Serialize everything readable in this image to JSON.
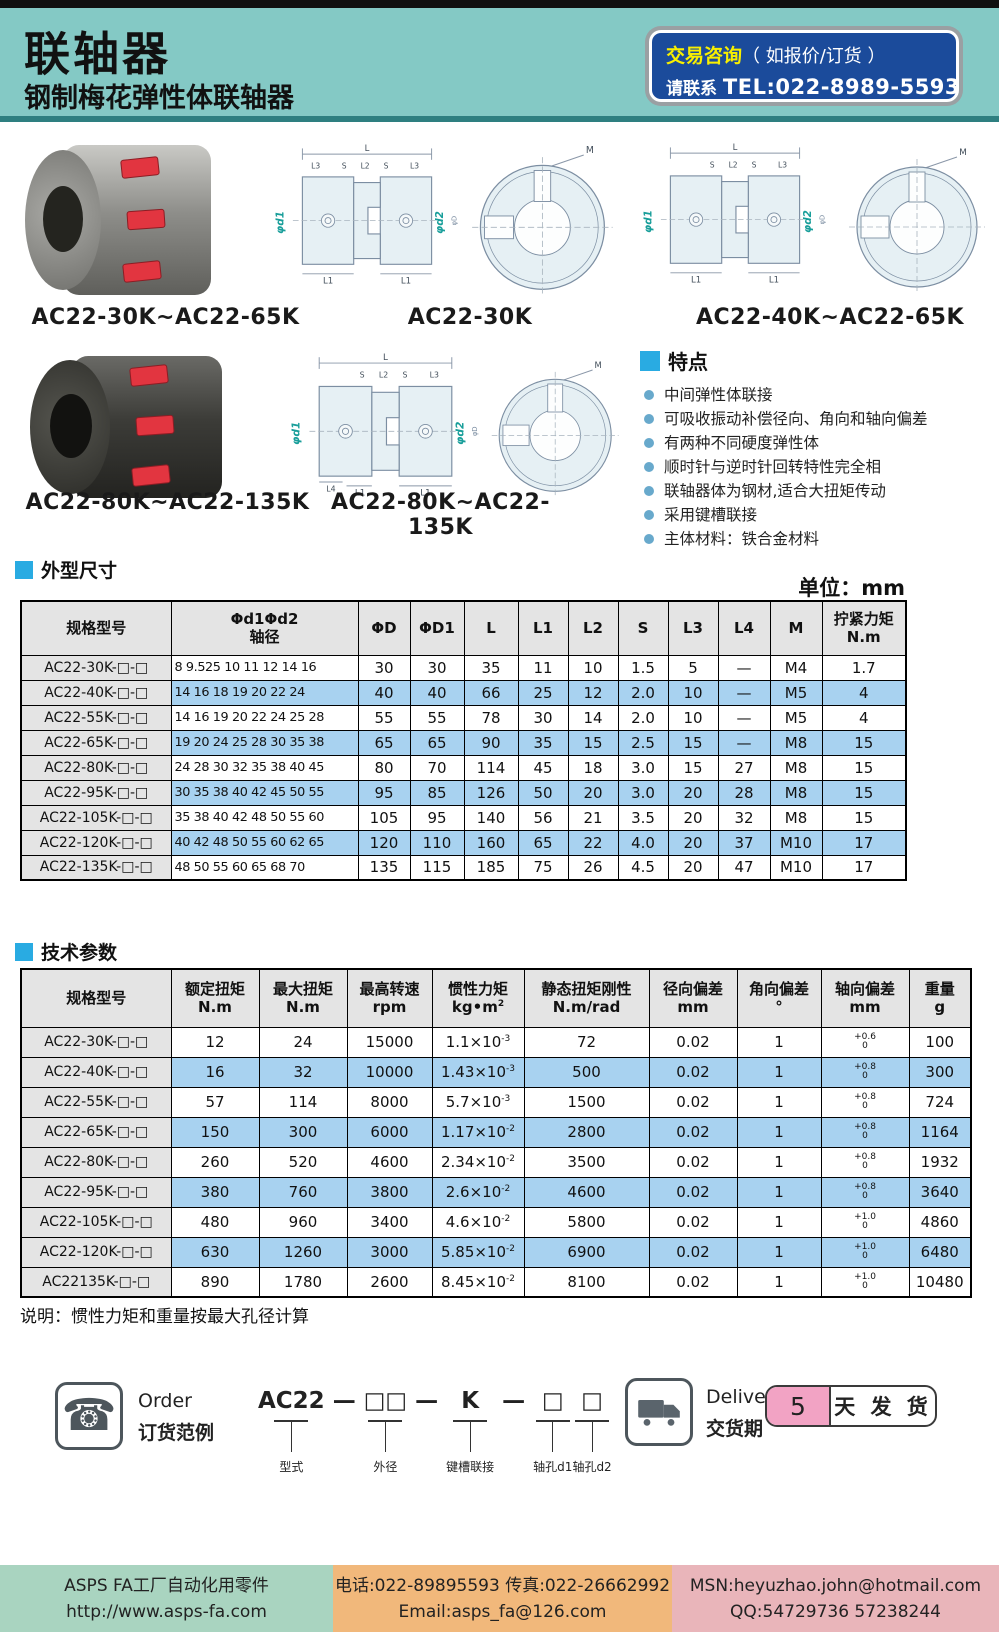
{
  "header": {
    "title": "联轴器",
    "subtitle": "钢制梅花弹性体联轴器",
    "contact_highlight": "交易咨询",
    "contact_rest": "（ 如报价/订货 ）",
    "contact_prefix": "请联系",
    "contact_tel": "TEL:022-8989-5593"
  },
  "products": {
    "row1_photo_label": "AC22-30K~AC22-65K",
    "row1_drawing1_label": "AC22-30K",
    "row1_drawing2_label": "AC22-40K~AC22-65K",
    "row2_photo_label": "AC22-80K~AC22-135K",
    "row2_drawing_label": "AC22-80K~AC22-135K"
  },
  "dim_labels": {
    "L": "L",
    "L1": "L1",
    "L2": "L2",
    "L3": "L3",
    "L4": "L4",
    "S": "S",
    "M": "M",
    "d1": "φd1",
    "d2": "φd2",
    "D": "φD"
  },
  "features": {
    "title": "特点",
    "items": [
      "中间弹性体联接",
      "可吸收振动补偿径向、角向和轴向偏差",
      "有两种不同硬度弹性体",
      "顺时针与逆时针回转特性完全相",
      "联轴器体为钢材,适合大扭矩传动",
      "采用键槽联接",
      "主体材料：铁合金材料"
    ]
  },
  "dim_section": {
    "title": "外型尺寸",
    "unit": "单位：mm",
    "headers": {
      "model": "规格型号",
      "bore_l1": "Φd1Φd2",
      "bore_l2": "轴径",
      "cols": [
        "ΦD",
        "ΦD1",
        "L",
        "L1",
        "L2",
        "S",
        "L3",
        "L4",
        "M"
      ],
      "torque_l1": "拧紧力矩",
      "torque_l2": "N.m"
    },
    "rows": [
      {
        "model": "AC22-30K-□-□",
        "bores": "8 9.525 10 11 12 14 16",
        "vals": [
          "30",
          "30",
          "35",
          "11",
          "10",
          "1.5",
          "5",
          "—",
          "M4",
          "1.7"
        ]
      },
      {
        "model": "AC22-40K-□-□",
        "bores": "14 16 18 19 20 22 24",
        "vals": [
          "40",
          "40",
          "66",
          "25",
          "12",
          "2.0",
          "10",
          "—",
          "M5",
          "4"
        ]
      },
      {
        "model": "AC22-55K-□-□",
        "bores": "14 16 19 20 22 24 25 28",
        "vals": [
          "55",
          "55",
          "78",
          "30",
          "14",
          "2.0",
          "10",
          "—",
          "M5",
          "4"
        ]
      },
      {
        "model": "AC22-65K-□-□",
        "bores": "19 20 24 25 28 30 35 38",
        "vals": [
          "65",
          "65",
          "90",
          "35",
          "15",
          "2.5",
          "15",
          "—",
          "M8",
          "15"
        ]
      },
      {
        "model": "AC22-80K-□-□",
        "bores": "24 28 30 32 35 38 40 45",
        "vals": [
          "80",
          "70",
          "114",
          "45",
          "18",
          "3.0",
          "15",
          "27",
          "M8",
          "15"
        ]
      },
      {
        "model": "AC22-95K-□-□",
        "bores": "30 35 38 40 42 45 50 55",
        "vals": [
          "95",
          "85",
          "126",
          "50",
          "20",
          "3.0",
          "20",
          "28",
          "M8",
          "15"
        ]
      },
      {
        "model": "AC22-105K-□-□",
        "bores": "35 38 40 42 48 50 55 60",
        "vals": [
          "105",
          "95",
          "140",
          "56",
          "21",
          "3.5",
          "20",
          "32",
          "M8",
          "15"
        ]
      },
      {
        "model": "AC22-120K-□-□",
        "bores": "40 42 48 50 55 60 62 65",
        "vals": [
          "120",
          "110",
          "160",
          "65",
          "22",
          "4.0",
          "20",
          "37",
          "M10",
          "17"
        ]
      },
      {
        "model": "AC22-135K-□-□",
        "bores": "48 50 55 60 65 68 70",
        "vals": [
          "135",
          "115",
          "185",
          "75",
          "26",
          "4.5",
          "20",
          "47",
          "M10",
          "17"
        ]
      }
    ]
  },
  "tech_section": {
    "title": "技术参数",
    "headers": {
      "model": "规格型号",
      "cols": [
        {
          "l1": "额定扭矩",
          "l2": "N.m"
        },
        {
          "l1": "最大扭矩",
          "l2": "N.m"
        },
        {
          "l1": "最高转速",
          "l2": "rpm"
        },
        {
          "l1": "惯性力矩",
          "l2": "kg•m",
          "sup": "2"
        },
        {
          "l1": "静态扭矩刚性",
          "l2": "N.m/rad"
        },
        {
          "l1": "径向偏差",
          "l2": "mm"
        },
        {
          "l1": "角向偏差",
          "l2": "°"
        },
        {
          "l1": "轴向偏差",
          "l2": "mm"
        },
        {
          "l1": "重量",
          "l2": "g"
        }
      ]
    },
    "rows": [
      {
        "model": "AC22-30K-□-□",
        "rated": "12",
        "max": "24",
        "speed": "15000",
        "inertia_base": "1.1×10",
        "inertia_exp": "-3",
        "stiff": "72",
        "radial": "0.02",
        "angular": "1",
        "axial_top": "+0.6",
        "axial_bot": "0",
        "weight": "100"
      },
      {
        "model": "AC22-40K-□-□",
        "rated": "16",
        "max": "32",
        "speed": "10000",
        "inertia_base": "1.43×10",
        "inertia_exp": "-3",
        "stiff": "500",
        "radial": "0.02",
        "angular": "1",
        "axial_top": "+0.8",
        "axial_bot": "0",
        "weight": "300"
      },
      {
        "model": "AC22-55K-□-□",
        "rated": "57",
        "max": "114",
        "speed": "8000",
        "inertia_base": "5.7×10",
        "inertia_exp": "-3",
        "stiff": "1500",
        "radial": "0.02",
        "angular": "1",
        "axial_top": "+0.8",
        "axial_bot": "0",
        "weight": "724"
      },
      {
        "model": "AC22-65K-□-□",
        "rated": "150",
        "max": "300",
        "speed": "6000",
        "inertia_base": "1.17×10",
        "inertia_exp": "-2",
        "stiff": "2800",
        "radial": "0.02",
        "angular": "1",
        "axial_top": "+0.8",
        "axial_bot": "0",
        "weight": "1164"
      },
      {
        "model": "AC22-80K-□-□",
        "rated": "260",
        "max": "520",
        "speed": "4600",
        "inertia_base": "2.34×10",
        "inertia_exp": "-2",
        "stiff": "3500",
        "radial": "0.02",
        "angular": "1",
        "axial_top": "+0.8",
        "axial_bot": "0",
        "weight": "1932"
      },
      {
        "model": "AC22-95K-□-□",
        "rated": "380",
        "max": "760",
        "speed": "3800",
        "inertia_base": "2.6×10",
        "inertia_exp": "-2",
        "stiff": "4600",
        "radial": "0.02",
        "angular": "1",
        "axial_top": "+0.8",
        "axial_bot": "0",
        "weight": "3640"
      },
      {
        "model": "AC22-105K-□-□",
        "rated": "480",
        "max": "960",
        "speed": "3400",
        "inertia_base": "4.6×10",
        "inertia_exp": "-2",
        "stiff": "5800",
        "radial": "0.02",
        "angular": "1",
        "axial_top": "+1.0",
        "axial_bot": "0",
        "weight": "4860"
      },
      {
        "model": "AC22-120K-□-□",
        "rated": "630",
        "max": "1260",
        "speed": "3000",
        "inertia_base": "5.85×10",
        "inertia_exp": "-2",
        "stiff": "6900",
        "radial": "0.02",
        "angular": "1",
        "axial_top": "+1.0",
        "axial_bot": "0",
        "weight": "6480"
      },
      {
        "model": "AC22135K-□-□",
        "rated": "890",
        "max": "1780",
        "speed": "2600",
        "inertia_base": "8.45×10",
        "inertia_exp": "-2",
        "stiff": "8100",
        "radial": "0.02",
        "angular": "1",
        "axial_top": "+1.0",
        "axial_bot": "0",
        "weight": "10480"
      }
    ],
    "note": "说明：惯性力矩和重量按最大孔径计算"
  },
  "order": {
    "label_en": "Order",
    "label_zh": "订货范例",
    "items": [
      {
        "type": "part",
        "code": "AC22",
        "label": "型式"
      },
      {
        "type": "dash",
        "code": "—"
      },
      {
        "type": "part",
        "code": "□□",
        "label": "外径"
      },
      {
        "type": "dash",
        "code": "—"
      },
      {
        "type": "part",
        "code": "K",
        "label": "键槽联接"
      },
      {
        "type": "dash",
        "code": "—"
      },
      {
        "type": "part",
        "code": "□",
        "label": "轴孔d1"
      },
      {
        "type": "part",
        "code": "□",
        "label": "轴孔d2"
      }
    ]
  },
  "delivery": {
    "label_en": "Delivery",
    "label_zh": "交货期",
    "days": "5",
    "suffix": "天 发 货"
  },
  "footer": {
    "company": "ASPS FA工厂自动化用零件",
    "website": "http://www.asps-fa.com",
    "phone_fax": "电话:022-89895593 传真:022-26662992",
    "email": "Email:asps_fa@126.com",
    "msn": "MSN:heyuzhao.john@hotmail.com",
    "qq": "QQ:54729736  57238244"
  },
  "colors": {
    "accent_blue": "#29abe2",
    "row_blue": "#a8d2f0",
    "header_teal": "#84c9c5",
    "contact_blue": "#1b4b9b"
  }
}
